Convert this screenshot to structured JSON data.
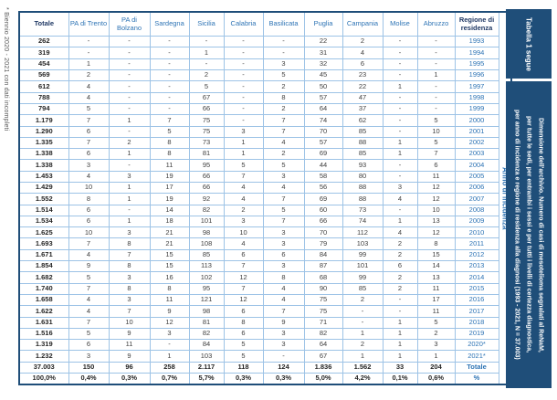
{
  "footnote_left": "* Biennio 2020 - 2021 con dati incompleti",
  "sidebar": {
    "tab_label": "Tabella 1 segue",
    "caption_line1": "Dimensione dell'archivio. Numero di casi di mesotelioma segnalati al ReNaM,",
    "caption_line2": "per tutte le sedi, per entrambi i sessi e per tutti i livelli di certezza diagnostica,",
    "caption_line3": "per anno di incidenza e regione di residenza alla diagnosi (1993 - 2021, N = 37.003)"
  },
  "table": {
    "axis_label": "Anno di incidenza",
    "columns": [
      "Totale",
      "PA di Trento",
      "PA di Bolzano",
      "Sardegna",
      "Sicilia",
      "Calabria",
      "Basilicata",
      "Puglia",
      "Campania",
      "Molise",
      "Abruzzo",
      "Regione di residenza"
    ],
    "rows": [
      [
        "262",
        "-",
        "-",
        "-",
        "-",
        "-",
        "-",
        "22",
        "2",
        "-",
        "-",
        "1993"
      ],
      [
        "319",
        "-",
        "-",
        "-",
        "1",
        "-",
        "-",
        "31",
        "4",
        "-",
        "-",
        "1994"
      ],
      [
        "454",
        "1",
        "-",
        "-",
        "-",
        "-",
        "3",
        "32",
        "6",
        "-",
        "-",
        "1995"
      ],
      [
        "569",
        "2",
        "-",
        "-",
        "2",
        "-",
        "5",
        "45",
        "23",
        "-",
        "1",
        "1996"
      ],
      [
        "612",
        "4",
        "-",
        "-",
        "5",
        "-",
        "2",
        "50",
        "22",
        "1",
        "-",
        "1997"
      ],
      [
        "788",
        "4",
        "-",
        "-",
        "67",
        "-",
        "8",
        "57",
        "47",
        "-",
        "-",
        "1998"
      ],
      [
        "794",
        "5",
        "-",
        "-",
        "66",
        "-",
        "2",
        "64",
        "37",
        "-",
        "-",
        "1999"
      ],
      [
        "1.179",
        "7",
        "1",
        "7",
        "75",
        "-",
        "7",
        "74",
        "62",
        "-",
        "5",
        "2000"
      ],
      [
        "1.290",
        "6",
        "-",
        "5",
        "75",
        "3",
        "7",
        "70",
        "85",
        "-",
        "10",
        "2001"
      ],
      [
        "1.335",
        "7",
        "2",
        "8",
        "73",
        "1",
        "4",
        "57",
        "88",
        "1",
        "5",
        "2002"
      ],
      [
        "1.338",
        "6",
        "1",
        "8",
        "81",
        "1",
        "2",
        "69",
        "85",
        "1",
        "7",
        "2003"
      ],
      [
        "1.338",
        "3",
        "-",
        "11",
        "95",
        "5",
        "5",
        "44",
        "93",
        "-",
        "6",
        "2004"
      ],
      [
        "1.453",
        "4",
        "3",
        "19",
        "66",
        "7",
        "3",
        "58",
        "80",
        "-",
        "11",
        "2005"
      ],
      [
        "1.429",
        "10",
        "1",
        "17",
        "66",
        "4",
        "4",
        "56",
        "88",
        "3",
        "12",
        "2006"
      ],
      [
        "1.552",
        "8",
        "1",
        "19",
        "92",
        "4",
        "7",
        "69",
        "88",
        "4",
        "12",
        "2007"
      ],
      [
        "1.514",
        "6",
        "-",
        "14",
        "82",
        "2",
        "5",
        "60",
        "73",
        "-",
        "10",
        "2008"
      ],
      [
        "1.534",
        "6",
        "1",
        "18",
        "101",
        "3",
        "7",
        "66",
        "74",
        "1",
        "13",
        "2009"
      ],
      [
        "1.625",
        "10",
        "3",
        "21",
        "98",
        "10",
        "3",
        "70",
        "112",
        "4",
        "12",
        "2010"
      ],
      [
        "1.693",
        "7",
        "8",
        "21",
        "108",
        "4",
        "3",
        "79",
        "103",
        "2",
        "8",
        "2011"
      ],
      [
        "1.671",
        "4",
        "7",
        "15",
        "85",
        "6",
        "6",
        "84",
        "99",
        "2",
        "15",
        "2012"
      ],
      [
        "1.854",
        "9",
        "8",
        "15",
        "113",
        "7",
        "3",
        "87",
        "101",
        "6",
        "14",
        "2013"
      ],
      [
        "1.682",
        "5",
        "3",
        "16",
        "102",
        "12",
        "8",
        "68",
        "99",
        "2",
        "13",
        "2014"
      ],
      [
        "1.740",
        "7",
        "8",
        "8",
        "95",
        "7",
        "4",
        "90",
        "85",
        "2",
        "11",
        "2015"
      ],
      [
        "1.658",
        "4",
        "3",
        "11",
        "121",
        "12",
        "4",
        "75",
        "2",
        "-",
        "17",
        "2016"
      ],
      [
        "1.622",
        "4",
        "7",
        "9",
        "98",
        "6",
        "7",
        "75",
        "-",
        "-",
        "11",
        "2017"
      ],
      [
        "1.631",
        "7",
        "10",
        "12",
        "81",
        "8",
        "9",
        "71",
        "-",
        "1",
        "5",
        "2018"
      ],
      [
        "1.516",
        "5",
        "9",
        "3",
        "82",
        "6",
        "3",
        "82",
        "1",
        "1",
        "2",
        "2019"
      ],
      [
        "1.319",
        "6",
        "11",
        "-",
        "84",
        "5",
        "3",
        "64",
        "2",
        "1",
        "3",
        "2020*"
      ],
      [
        "1.232",
        "3",
        "9",
        "1",
        "103",
        "5",
        "-",
        "67",
        "1",
        "1",
        "1",
        "2021*"
      ]
    ],
    "total_row": [
      "37.003",
      "150",
      "96",
      "258",
      "2.117",
      "118",
      "124",
      "1.836",
      "1.562",
      "33",
      "204",
      "Totale"
    ],
    "percent_row": [
      "100,0%",
      "0,4%",
      "0,3%",
      "0,7%",
      "5,7%",
      "0,3%",
      "0,3%",
      "5,0%",
      "4,2%",
      "0,1%",
      "0,6%",
      "%"
    ]
  },
  "colors": {
    "navy": "#1F3864",
    "blue": "#2E74B5",
    "border": "#9DC3E6",
    "outer": "#1F4E79",
    "sidebar_bg": "#1F4E79",
    "data": "#404040",
    "dark": "#262626",
    "footnote": "#595959"
  }
}
